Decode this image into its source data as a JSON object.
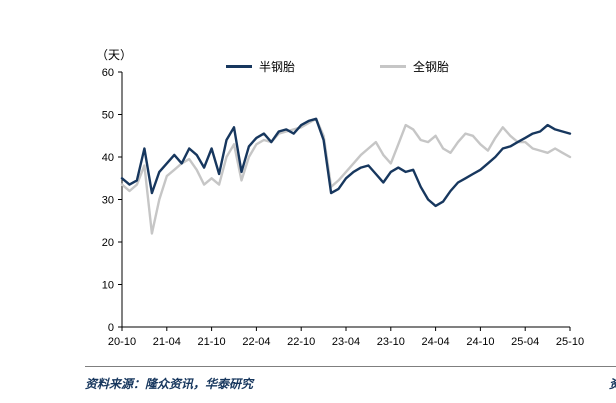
{
  "page": {
    "background": "#ffffff"
  },
  "chart": {
    "y_axis_title": "（天）",
    "legend": [
      {
        "label": "半钢胎",
        "color": "#17375e"
      },
      {
        "label": "全钢胎",
        "color": "#c6c6c6"
      }
    ]
  },
  "footer": {
    "source_text": "资料来源：隆众资讯，华泰研究"
  },
  "edge_clips": {
    "top_right": "（",
    "bottom_right": "资"
  },
  "chart_data": {
    "type": "line",
    "title": "",
    "xlabel": "",
    "ylabel": "（天）",
    "ylim": [
      0,
      60
    ],
    "y_ticks": [
      0,
      10,
      20,
      30,
      40,
      50,
      60
    ],
    "grid": false,
    "legend_position": "top",
    "x_tick_labels": [
      "20-10",
      "21-04",
      "21-10",
      "22-04",
      "22-10",
      "23-04",
      "23-10",
      "24-04",
      "24-10",
      "25-04",
      "25-10"
    ],
    "x_labels": [
      "20-10",
      "20-11",
      "20-12",
      "21-01",
      "21-02",
      "21-03",
      "21-04",
      "21-05",
      "21-06",
      "21-07",
      "21-08",
      "21-09",
      "21-10",
      "21-11",
      "21-12",
      "22-01",
      "22-02",
      "22-03",
      "22-04",
      "22-05",
      "22-06",
      "22-07",
      "22-08",
      "22-09",
      "22-10",
      "22-11",
      "22-12",
      "23-01",
      "23-02",
      "23-03",
      "23-04",
      "23-05",
      "23-06",
      "23-07",
      "23-08",
      "23-09",
      "23-10",
      "23-11",
      "23-12",
      "24-01",
      "24-02",
      "24-03",
      "24-04",
      "24-05",
      "24-06",
      "24-07",
      "24-08",
      "24-09",
      "24-10",
      "24-11",
      "24-12",
      "25-01",
      "25-02",
      "25-03",
      "25-04",
      "25-05",
      "25-06",
      "25-07",
      "25-08",
      "25-09",
      "25-10"
    ],
    "series": [
      {
        "name": "半钢胎",
        "color": "#17375e",
        "values": [
          35,
          33.5,
          34.5,
          42,
          31.5,
          36.5,
          38.5,
          40.5,
          38.5,
          42,
          40.5,
          37.5,
          42,
          36,
          44,
          47,
          36.5,
          42.5,
          44.5,
          45.5,
          43.5,
          46,
          46.5,
          45.5,
          47.5,
          48.5,
          49,
          44,
          31.5,
          32.5,
          35,
          36.5,
          37.5,
          38,
          36,
          34,
          36.5,
          37.5,
          36.5,
          37,
          33,
          30,
          28.5,
          29.5,
          32,
          34,
          35,
          36,
          37,
          38.5,
          40,
          42,
          42.5,
          43.5,
          44.5,
          45.5,
          46,
          47.5,
          46.5,
          46,
          45.5
        ]
      },
      {
        "name": "全钢胎",
        "color": "#c6c6c6",
        "values": [
          33.5,
          32,
          33.5,
          38,
          22,
          30,
          35.5,
          37,
          38.5,
          39.5,
          37,
          33.5,
          35,
          33.5,
          40,
          43,
          34.5,
          40,
          43,
          44,
          43.5,
          45.5,
          46,
          46.5,
          47,
          48,
          49,
          45,
          33,
          34.5,
          36.5,
          38.5,
          40.5,
          42,
          43.5,
          40.5,
          38.5,
          43,
          47.5,
          46.5,
          44,
          43.5,
          45,
          42,
          41,
          43.5,
          45.5,
          45,
          43,
          41.5,
          44.5,
          47,
          45,
          43.5,
          43.5,
          42,
          41.5,
          41,
          42,
          41,
          40
        ]
      }
    ]
  }
}
